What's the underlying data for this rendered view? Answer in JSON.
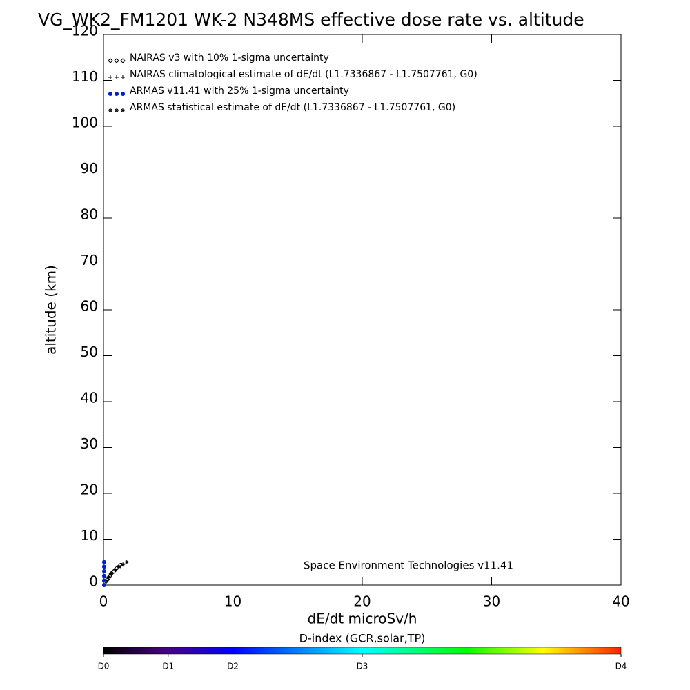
{
  "chart_data": {
    "type": "scatter",
    "title": "VG_WK2_FM1201   WK-2 N348MS effective dose rate vs. altitude",
    "x_label": "dE/dt microSv/h",
    "y_label": "altitude (km)",
    "annotation": "Space Environment Technologies v11.41",
    "xlim": [
      0,
      40
    ],
    "xticks": [
      0,
      10,
      20,
      30,
      40
    ],
    "ylim": [
      0,
      120
    ],
    "yticks": [
      0,
      10,
      20,
      30,
      40,
      50,
      60,
      70,
      80,
      90,
      100,
      110,
      120
    ],
    "series": [
      {
        "name": "NAIRAS v3 with 10% 1-sigma uncertainty",
        "color": "#000000",
        "marker": "diamond",
        "x": [
          0.2,
          0.3,
          0.4,
          0.5,
          0.6,
          0.8,
          1.0,
          1.3
        ],
        "values": [
          0.8,
          1.2,
          1.6,
          2.0,
          2.5,
          3.0,
          3.6,
          4.3
        ]
      },
      {
        "name": "NAIRAS climatological estimate of dE/dt (L1.7336867 - L1.7507761, G0)",
        "color": "#000000",
        "marker": "plus",
        "x": [
          0.2,
          0.4,
          0.6,
          0.9,
          1.2
        ],
        "values": [
          1.0,
          1.8,
          2.6,
          3.4,
          4.2
        ]
      },
      {
        "name": "ARMAS v11.41 with 25% 1-sigma uncertainty",
        "color": "#0022cc",
        "marker": "dot",
        "x": [
          0.05,
          0.05,
          0.05,
          0.05,
          0.05,
          0.05
        ],
        "values": [
          0,
          1,
          2,
          3,
          4,
          5
        ]
      },
      {
        "name": "ARMAS statistical estimate of dE/dt (L1.7336867 - L1.7507761, G0)",
        "color": "#000000",
        "marker": "asterisk",
        "x": [
          0.6,
          0.9,
          1.2,
          1.5,
          1.8
        ],
        "values": [
          2.5,
          3.3,
          4.0,
          4.5,
          5.0
        ]
      }
    ],
    "colorbar": {
      "label": "D-index (GCR,solar,TP)",
      "clim": [
        0,
        4
      ],
      "ticks": [
        {
          "value": 0,
          "label": "D0"
        },
        {
          "value": 0.5,
          "label": "D1"
        },
        {
          "value": 1,
          "label": "D2"
        },
        {
          "value": 2,
          "label": "D3"
        },
        {
          "value": 4,
          "label": "D4"
        }
      ]
    }
  }
}
